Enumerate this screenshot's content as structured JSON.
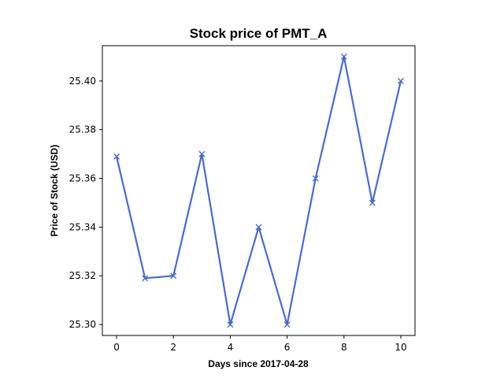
{
  "chart_data": {
    "type": "line",
    "title": "Stock price of PMT_A",
    "xlabel": "Days since 2017-04-28",
    "ylabel": "Price of Stock (USD)",
    "x": [
      0,
      1,
      2,
      3,
      4,
      5,
      6,
      7,
      8,
      9,
      10
    ],
    "series": [
      {
        "values": [
          25.369,
          25.319,
          25.32,
          25.37,
          25.3,
          25.34,
          25.3,
          25.36,
          25.41,
          25.35,
          25.4
        ]
      }
    ],
    "xlim": [
      -0.5,
      10.5
    ],
    "ylim": [
      25.2955,
      25.4145
    ],
    "x_ticks": [
      0,
      2,
      4,
      6,
      8,
      10
    ],
    "x_tick_labels": [
      "0",
      "2",
      "4",
      "6",
      "8",
      "10"
    ],
    "y_ticks": [
      25.3,
      25.32,
      25.34,
      25.36,
      25.38,
      25.4
    ],
    "y_tick_labels": [
      "25.30",
      "25.32",
      "25.34",
      "25.36",
      "25.38",
      "25.40"
    ],
    "grid": false,
    "marker": "x",
    "color": "#4a6bc6"
  }
}
